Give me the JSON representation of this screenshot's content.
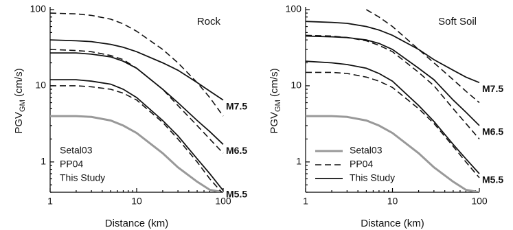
{
  "chart_data": [
    {
      "type": "line",
      "title": "Rock",
      "xlabel": "Distance (km)",
      "ylabel": {
        "main": "PGV",
        "sub": "GM",
        "unit": " (cm/s)"
      },
      "xscale": "log",
      "yscale": "log",
      "x": [
        1,
        2,
        3,
        5,
        7,
        10,
        20,
        30,
        50,
        70,
        100
      ],
      "xlim": [
        1,
        100
      ],
      "xticks": [
        1,
        10,
        100
      ],
      "ylim": [
        0.4,
        100
      ],
      "yticks": [
        1,
        10,
        100
      ],
      "legend": {
        "position": "lower left",
        "samples": false
      },
      "magnitude_labels": [
        "M7.5",
        "M6.5",
        "M5.5"
      ],
      "series": [
        {
          "name": "Setal03",
          "color": "#999999",
          "dash": false,
          "width": 3,
          "curves": [
            [
              4,
              4,
              3.9,
              3.5,
              3,
              2.4,
              1.3,
              0.85,
              0.55,
              0.43,
              0.4
            ]
          ]
        },
        {
          "name": "PP04",
          "color": "#111111",
          "dash": true,
          "width": 1.6,
          "curves": [
            [
              90,
              88,
              84,
              75,
              65,
              52,
              30,
              20,
              11,
              7,
              4
            ],
            [
              30,
              29,
              28,
              25,
              22,
              17,
              9,
              5.5,
              3,
              2,
              1.3
            ],
            [
              10,
              10,
              9.7,
              9,
              8,
              6.5,
              3.3,
              2,
              1,
              0.6,
              0.38
            ]
          ]
        },
        {
          "name": "This Study",
          "color": "#111111",
          "dash": false,
          "width": 1.8,
          "curves": [
            [
              40,
              39,
              38,
              35,
              32,
              28,
              20,
              16,
              11,
              8.5,
              6.5
            ],
            [
              27,
              27,
              26,
              24,
              21,
              17,
              9,
              6,
              3.5,
              2.5,
              1.7
            ],
            [
              12,
              12,
              11.5,
              10.5,
              9,
              7,
              3.5,
              2.2,
              1.1,
              0.7,
              0.42
            ]
          ]
        }
      ]
    },
    {
      "type": "line",
      "title": "Soft Soil",
      "xlabel": "Distance (km)",
      "ylabel": {
        "main": "PGV",
        "sub": "GM",
        "unit": " (cm/s)"
      },
      "xscale": "log",
      "yscale": "log",
      "x": [
        1,
        2,
        3,
        5,
        7,
        10,
        20,
        30,
        50,
        70,
        100
      ],
      "xlim": [
        1,
        100
      ],
      "xticks": [
        1,
        10,
        100
      ],
      "ylim": [
        0.4,
        100
      ],
      "yticks": [
        1,
        10,
        100
      ],
      "legend": {
        "position": "lower left",
        "samples": true
      },
      "magnitude_labels": [
        "M7.5",
        "M6.5",
        "M5.5"
      ],
      "series": [
        {
          "name": "Setal03",
          "color": "#999999",
          "dash": false,
          "width": 3,
          "curves": [
            [
              4,
              4,
              3.9,
              3.5,
              3,
              2.4,
              1.3,
              0.85,
              0.55,
              0.43,
              0.4
            ]
          ]
        },
        {
          "name": "PP04",
          "color": "#111111",
          "dash": true,
          "width": 1.6,
          "curves": [
            [
              null,
              null,
              null,
              100,
              80,
              60,
              30,
              20,
              12,
              8.5,
              6
            ],
            [
              46,
              45,
              43,
              39,
              34,
              28,
              15,
              10,
              5,
              3.2,
              2
            ],
            [
              15,
              15,
              14.5,
              13,
              11.5,
              9.5,
              5,
              3.2,
              1.6,
              1,
              0.62
            ]
          ]
        },
        {
          "name": "This Study",
          "color": "#111111",
          "dash": false,
          "width": 1.8,
          "curves": [
            [
              70,
              68,
              66,
              60,
              54,
              46,
              30,
              22,
              16,
              13,
              11
            ],
            [
              45,
              44,
              43,
              40,
              36,
              30,
              17,
              12,
              6.5,
              4.5,
              3
            ],
            [
              21,
              20,
              19,
              17,
              14.5,
              11.5,
              5.5,
              3.4,
              1.7,
              1.1,
              0.7
            ]
          ]
        }
      ]
    }
  ]
}
